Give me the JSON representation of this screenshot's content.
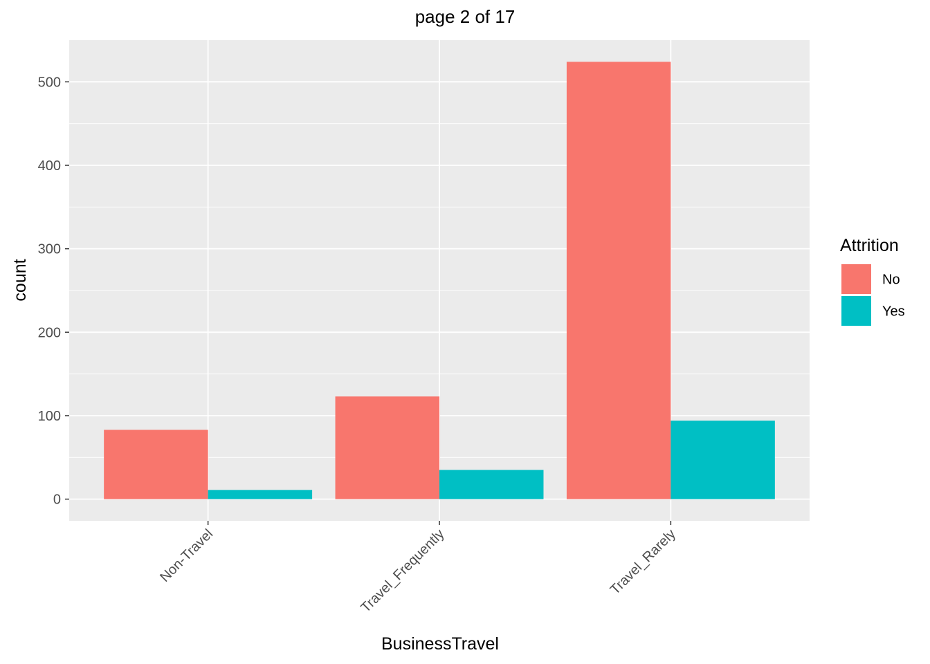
{
  "chart_data": {
    "type": "bar",
    "title": "page 2 of 17",
    "xlabel": "BusinessTravel",
    "ylabel": "count",
    "categories": [
      "Non-Travel",
      "Travel_Frequently",
      "Travel_Rarely"
    ],
    "series": [
      {
        "name": "No",
        "values": [
          83,
          123,
          524
        ],
        "color": "#F8766D"
      },
      {
        "name": "Yes",
        "values": [
          11,
          35,
          94
        ],
        "color": "#00BFC4"
      }
    ],
    "yticks": [
      0,
      100,
      200,
      300,
      400,
      500
    ],
    "ylim": [
      -26,
      550
    ],
    "grid": true,
    "panel_background": "#EBEBEB",
    "legend": {
      "title": "Attrition",
      "position": "right"
    }
  }
}
